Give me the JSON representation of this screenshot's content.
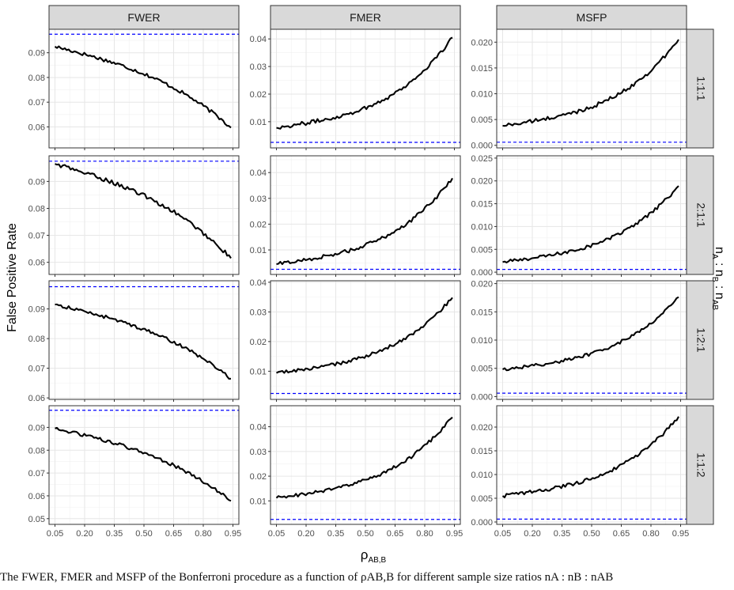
{
  "chart_data": {
    "type": "line",
    "layout": "facet-grid",
    "columns": [
      "FWER",
      "FMER",
      "MSFP"
    ],
    "rows": [
      "1:1:1",
      "2:1:1",
      "1:2:1",
      "1:1:2"
    ],
    "xlabel": "ρAB,B",
    "ylabel": "False Positive Rate",
    "row_strip_title": "nA : nB : nAB",
    "xlim": [
      0.02,
      0.98
    ],
    "x_ticks": [
      0.05,
      0.2,
      0.35,
      0.5,
      0.65,
      0.8,
      0.95
    ],
    "x_tick_labels": [
      "0.05",
      "0.20",
      "0.35",
      "0.50",
      "0.65",
      "0.80",
      "0.95"
    ],
    "x_range_of_curves": [
      0.05,
      0.94
    ],
    "grid": true,
    "reference_line": {
      "style": "dashed",
      "color": "#0000ff",
      "values": {
        "FWER": 0.0975,
        "FMER": 0.0025,
        "MSFP": 0.0006
      }
    },
    "panels": [
      {
        "row": "1:1:1",
        "col": "FWER",
        "ylim": [
          0.0515,
          0.0995
        ],
        "y_ticks": [
          0.06,
          0.07,
          0.08,
          0.09
        ],
        "y_tick_labels": [
          "0.06",
          "0.07",
          "0.08",
          "0.09"
        ],
        "y_start": 0.0925,
        "y_end": 0.0597,
        "curve": "concave"
      },
      {
        "row": "1:1:1",
        "col": "FMER",
        "ylim": [
          0.0005,
          0.0435
        ],
        "y_ticks": [
          0.01,
          0.02,
          0.03,
          0.04
        ],
        "y_tick_labels": [
          "0.01",
          "0.02",
          "0.03",
          "0.04"
        ],
        "y_start": 0.0078,
        "y_end": 0.0405,
        "curve": "convex"
      },
      {
        "row": "1:1:1",
        "col": "MSFP",
        "ylim": [
          -0.0005,
          0.0225
        ],
        "y_ticks": [
          0.0,
          0.005,
          0.01,
          0.015,
          0.02
        ],
        "y_tick_labels": [
          "0.000",
          "0.005",
          "0.010",
          "0.015",
          "0.020"
        ],
        "y_start": 0.0038,
        "y_end": 0.0205,
        "curve": "convex"
      },
      {
        "row": "2:1:1",
        "col": "FWER",
        "ylim": [
          0.0555,
          0.0995
        ],
        "y_ticks": [
          0.06,
          0.07,
          0.08,
          0.09
        ],
        "y_tick_labels": [
          "0.06",
          "0.07",
          "0.08",
          "0.09"
        ],
        "y_start": 0.0965,
        "y_end": 0.0615,
        "curve": "concave"
      },
      {
        "row": "2:1:1",
        "col": "FMER",
        "ylim": [
          0.0005,
          0.0465
        ],
        "y_ticks": [
          0.01,
          0.02,
          0.03,
          0.04
        ],
        "y_tick_labels": [
          "0.01",
          "0.02",
          "0.03",
          "0.04"
        ],
        "y_start": 0.0045,
        "y_end": 0.0378,
        "curve": "convex"
      },
      {
        "row": "2:1:1",
        "col": "MSFP",
        "ylim": [
          -0.0005,
          0.0255
        ],
        "y_ticks": [
          0.0,
          0.005,
          0.01,
          0.015,
          0.02,
          0.025
        ],
        "y_tick_labels": [
          "0.000",
          "0.005",
          "0.010",
          "0.015",
          "0.020",
          "0.025"
        ],
        "y_start": 0.0022,
        "y_end": 0.0189,
        "curve": "convex"
      },
      {
        "row": "1:2:1",
        "col": "FWER",
        "ylim": [
          0.0595,
          0.0995
        ],
        "y_ticks": [
          0.06,
          0.07,
          0.08,
          0.09
        ],
        "y_tick_labels": [
          "0.06",
          "0.07",
          "0.08",
          "0.09"
        ],
        "y_start": 0.0915,
        "y_end": 0.0665,
        "curve": "concave"
      },
      {
        "row": "1:2:1",
        "col": "FMER",
        "ylim": [
          0.0005,
          0.0405
        ],
        "y_ticks": [
          0.01,
          0.02,
          0.03,
          0.04
        ],
        "y_tick_labels": [
          "0.01",
          "0.02",
          "0.03",
          "0.04"
        ],
        "y_start": 0.0094,
        "y_end": 0.0348,
        "curve": "convex"
      },
      {
        "row": "1:2:1",
        "col": "MSFP",
        "ylim": [
          -0.0005,
          0.0205
        ],
        "y_ticks": [
          0.0,
          0.005,
          0.01,
          0.015,
          0.02
        ],
        "y_tick_labels": [
          "0.000",
          "0.005",
          "0.010",
          "0.015",
          "0.020"
        ],
        "y_start": 0.0048,
        "y_end": 0.0176,
        "curve": "convex"
      },
      {
        "row": "1:1:2",
        "col": "FWER",
        "ylim": [
          0.0475,
          0.0995
        ],
        "y_ticks": [
          0.05,
          0.06,
          0.07,
          0.08,
          0.09
        ],
        "y_tick_labels": [
          "0.05",
          "0.06",
          "0.07",
          "0.08",
          "0.09"
        ],
        "y_start": 0.0895,
        "y_end": 0.0578,
        "curve": "concave"
      },
      {
        "row": "1:1:2",
        "col": "FMER",
        "ylim": [
          0.0005,
          0.0485
        ],
        "y_ticks": [
          0.01,
          0.02,
          0.03,
          0.04
        ],
        "y_tick_labels": [
          "0.01",
          "0.02",
          "0.03",
          "0.04"
        ],
        "y_start": 0.0112,
        "y_end": 0.0438,
        "curve": "convex"
      },
      {
        "row": "1:1:2",
        "col": "MSFP",
        "ylim": [
          -0.0005,
          0.0245
        ],
        "y_ticks": [
          0.0,
          0.005,
          0.01,
          0.015,
          0.02
        ],
        "y_tick_labels": [
          "0.000",
          "0.005",
          "0.010",
          "0.015",
          "0.020"
        ],
        "y_start": 0.0055,
        "y_end": 0.0222,
        "curve": "convex"
      }
    ]
  },
  "caption": "The FWER, FMER and MSFP of the Bonferroni procedure as a function of ρAB,B for different sample size ratios nA : nB : nAB"
}
